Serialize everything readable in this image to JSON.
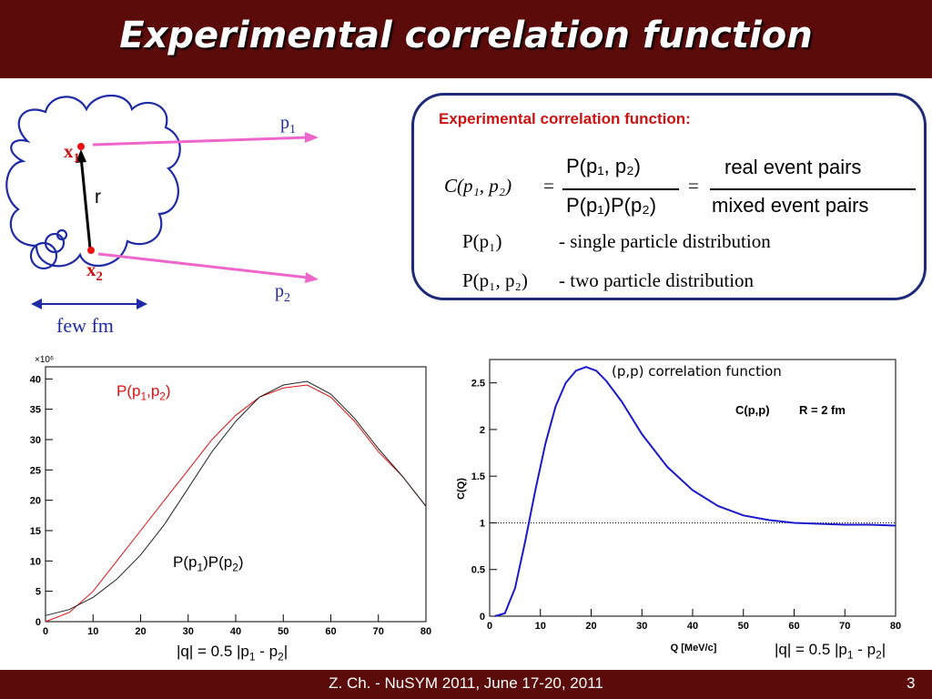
{
  "slide": {
    "title": "Experimental correlation function",
    "footer": "Z. Ch. - NuSYM 2011, June 17-20, 2011",
    "page_number": "3"
  },
  "diagram": {
    "p1": "p",
    "p1_sub": "1",
    "p2": "p",
    "p2_sub": "2",
    "x1": "x",
    "x1_sub": "1",
    "x2": "x",
    "x2_sub": "2",
    "r": "r",
    "size_label": "few fm"
  },
  "formula_box": {
    "heading": "Experimental correlation function:",
    "lhs": "C(p₁, p₂)",
    "numerator": "P(p₁, p₂)",
    "denominator": "P(p₁)P(p₂)",
    "real_pairs": "real event pairs",
    "mixed_pairs": "mixed event pairs",
    "p1_term": "P(p₁)",
    "p1_desc": "- single particle distribution",
    "p12_term": "P(p₁, p₂)",
    "p12_desc": "- two particle distribution"
  },
  "chart_data": [
    {
      "type": "line",
      "title": "",
      "xlabel": "",
      "ylabel": "",
      "y_multiplier": "×10⁶",
      "xlim": [
        0,
        80
      ],
      "ylim": [
        0,
        42
      ],
      "x_ticks": [
        0,
        10,
        20,
        30,
        40,
        50,
        60,
        70,
        80
      ],
      "y_ticks": [
        0,
        5,
        10,
        15,
        20,
        25,
        30,
        35,
        40
      ],
      "series": [
        {
          "name": "P(p1,p2)",
          "color": "#e01010",
          "x": [
            0,
            5,
            10,
            15,
            20,
            25,
            30,
            35,
            40,
            45,
            50,
            55,
            60,
            65,
            70,
            75,
            80
          ],
          "y": [
            0,
            1.5,
            5,
            10,
            15,
            20,
            25,
            30,
            34,
            37,
            38.5,
            39,
            37,
            33,
            28,
            24,
            19
          ]
        },
        {
          "name": "P(p1)P(p2)",
          "color": "#222222",
          "x": [
            0,
            5,
            10,
            15,
            20,
            25,
            30,
            35,
            40,
            45,
            50,
            55,
            60,
            65,
            70,
            75,
            80
          ],
          "y": [
            1,
            2,
            4,
            7,
            11,
            16,
            22,
            28,
            33,
            37,
            39,
            39.6,
            37.5,
            33.5,
            28.5,
            24,
            19
          ]
        }
      ],
      "annotations": {
        "red_label": "P(p",
        "red_label_sub1": "1",
        "red_label_mid": ",p",
        "red_label_sub2": "2",
        "red_label_end": ")",
        "black_label": "P(p",
        "black_label_sub1": "1",
        "black_label_mid": ")P(p",
        "black_label_sub2": "2",
        "black_label_end": ")",
        "caption": "|q| = 0.5 |p",
        "caption_sub1": "1",
        "caption_mid": " - p",
        "caption_sub2": "2",
        "caption_end": "|"
      }
    },
    {
      "type": "line",
      "title": "(p,p) correlation function",
      "xlabel": "Q [MeV/c]",
      "ylabel": "C(Q)",
      "legend": "C(p,p)",
      "legend_r": "R = 2 fm",
      "xlim": [
        0,
        80
      ],
      "ylim": [
        0,
        2.75
      ],
      "x_ticks": [
        0,
        10,
        20,
        30,
        40,
        50,
        60,
        70,
        80
      ],
      "y_ticks": [
        0,
        0.5,
        1,
        1.5,
        2,
        2.5
      ],
      "reference_line": 1,
      "series": [
        {
          "name": "C(p,p)",
          "color": "#1a1acc",
          "x": [
            1,
            3,
            5,
            7,
            9,
            11,
            13,
            15,
            17,
            19,
            21,
            23,
            26,
            30,
            35,
            40,
            45,
            50,
            55,
            60,
            65,
            70,
            75,
            80
          ],
          "y": [
            0,
            0.03,
            0.3,
            0.8,
            1.35,
            1.85,
            2.25,
            2.5,
            2.63,
            2.67,
            2.63,
            2.52,
            2.3,
            1.95,
            1.6,
            1.35,
            1.18,
            1.08,
            1.03,
            1.0,
            0.99,
            0.98,
            0.98,
            0.97
          ]
        }
      ],
      "annotations": {
        "caption": "|q| = 0.5 |p",
        "caption_sub1": "1",
        "caption_mid": " - p",
        "caption_sub2": "2",
        "caption_end": "|"
      }
    }
  ]
}
